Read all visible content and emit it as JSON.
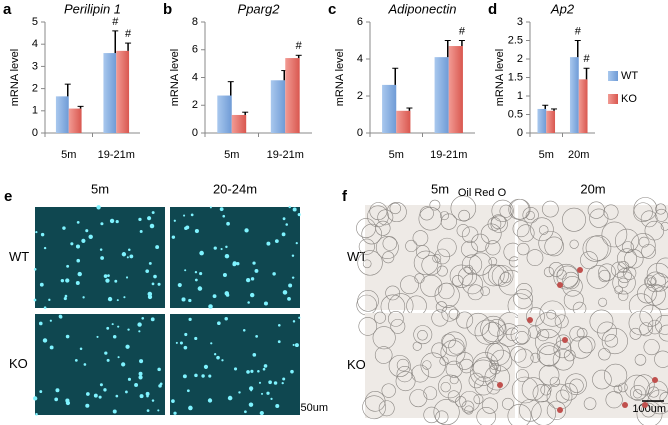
{
  "chart_data": [
    {
      "type": "bar",
      "panel": "a",
      "title": "Perilipin 1",
      "ylabel": "mRNA level",
      "categories": [
        "5m",
        "19-21m"
      ],
      "series": [
        {
          "name": "WT",
          "color": "#8db3e2",
          "values": [
            1.65,
            3.6
          ],
          "errors": [
            0.55,
            1.0
          ],
          "annotations": [
            null,
            "#"
          ]
        },
        {
          "name": "KO",
          "color": "#e6736d",
          "values": [
            1.1,
            3.7
          ],
          "errors": [
            0.1,
            0.35
          ],
          "annotations": [
            null,
            "#"
          ]
        }
      ],
      "ylim": [
        0,
        5
      ],
      "yticks": [
        0,
        1,
        2,
        3,
        4,
        5
      ]
    },
    {
      "type": "bar",
      "panel": "b",
      "title": "Pparg2",
      "ylabel": "mRNA level",
      "categories": [
        "5m",
        "19-21m"
      ],
      "series": [
        {
          "name": "WT",
          "color": "#8db3e2",
          "values": [
            2.7,
            3.8
          ],
          "errors": [
            1.0,
            0.7
          ],
          "annotations": [
            null,
            null
          ]
        },
        {
          "name": "KO",
          "color": "#e6736d",
          "values": [
            1.3,
            5.4
          ],
          "errors": [
            0.2,
            0.2
          ],
          "annotations": [
            null,
            "#"
          ]
        }
      ],
      "ylim": [
        0,
        8
      ],
      "yticks": [
        0,
        2,
        4,
        6,
        8
      ]
    },
    {
      "type": "bar",
      "panel": "c",
      "title": "Adiponectin",
      "ylabel": "mRNA level",
      "categories": [
        "5m",
        "19-21m"
      ],
      "series": [
        {
          "name": "WT",
          "color": "#8db3e2",
          "values": [
            2.6,
            4.1
          ],
          "errors": [
            0.9,
            0.9
          ],
          "annotations": [
            null,
            null
          ]
        },
        {
          "name": "KO",
          "color": "#e6736d",
          "values": [
            1.2,
            4.7
          ],
          "errors": [
            0.15,
            0.3
          ],
          "annotations": [
            null,
            "#"
          ]
        }
      ],
      "ylim": [
        0,
        6
      ],
      "yticks": [
        0,
        2,
        4,
        6
      ]
    },
    {
      "type": "bar",
      "panel": "d",
      "title": "Ap2",
      "ylabel": "mRNA level",
      "categories": [
        "5m",
        "20m"
      ],
      "series": [
        {
          "name": "WT",
          "color": "#8db3e2",
          "values": [
            0.65,
            2.05
          ],
          "errors": [
            0.1,
            0.45
          ],
          "annotations": [
            null,
            "#"
          ]
        },
        {
          "name": "KO",
          "color": "#e6736d",
          "values": [
            0.6,
            1.45
          ],
          "errors": [
            0.05,
            0.3
          ],
          "annotations": [
            null,
            "#"
          ]
        }
      ],
      "ylim": [
        0,
        3
      ],
      "yticks": [
        0,
        0.5,
        1,
        1.5,
        2,
        2.5,
        3
      ],
      "legend": "right"
    }
  ],
  "panel_e": {
    "label": "e",
    "columns": [
      "5m",
      "20-24m"
    ],
    "rows": [
      "WT",
      "KO"
    ],
    "scale_bar": "50um"
  },
  "panel_f": {
    "label": "f",
    "columns": [
      "5m",
      "20m"
    ],
    "rows": [
      "WT",
      "KO"
    ],
    "stain": "Oil Red O",
    "scale_bar": "100um"
  }
}
